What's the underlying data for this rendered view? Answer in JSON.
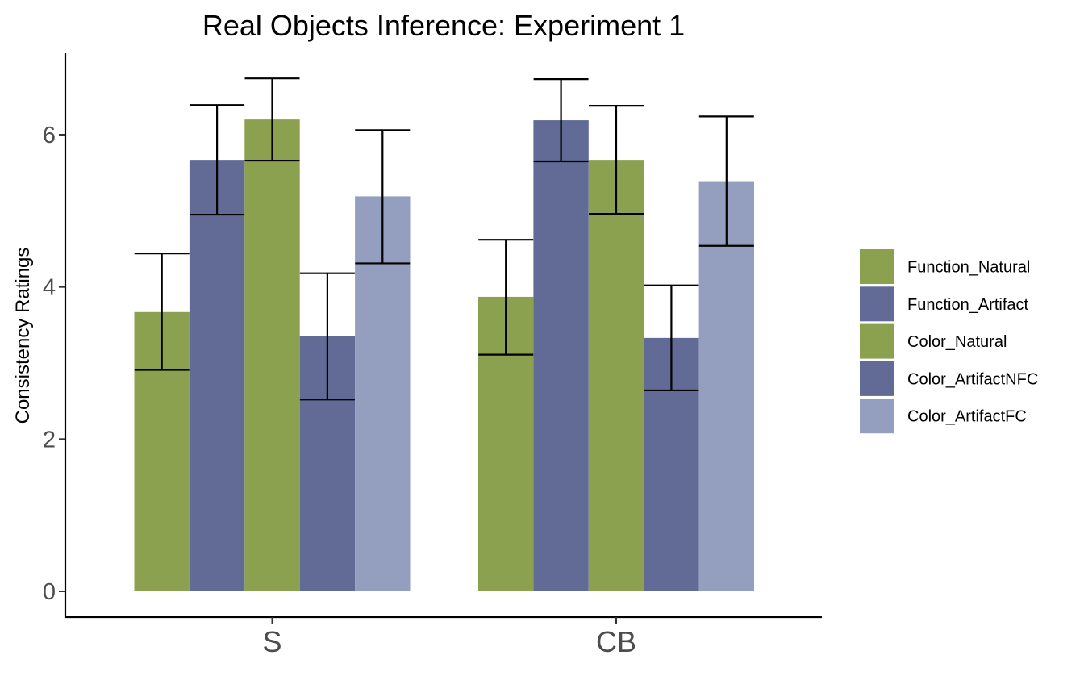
{
  "chart_data": {
    "type": "bar",
    "title": "Real Objects Inference: Experiment 1",
    "xlabel": "",
    "ylabel": "Consistency Ratings",
    "ylim": [
      -0.35,
      7.1
    ],
    "yticks": [
      0,
      2,
      4,
      6
    ],
    "categories": [
      "S",
      "CB"
    ],
    "series": [
      {
        "name": "Function_Natural",
        "color": "#8ba150",
        "values": [
          3.67,
          3.87
        ],
        "error_low": [
          2.91,
          3.11
        ],
        "error_high": [
          4.44,
          4.62
        ]
      },
      {
        "name": "Function_Artifact",
        "color": "#616b95",
        "values": [
          5.67,
          6.19
        ],
        "error_low": [
          4.95,
          5.65
        ],
        "error_high": [
          6.39,
          6.73
        ]
      },
      {
        "name": "Color_Natural",
        "color": "#8ba150",
        "values": [
          6.2,
          5.67
        ],
        "error_low": [
          5.66,
          4.96
        ],
        "error_high": [
          6.74,
          6.38
        ]
      },
      {
        "name": "Color_ArtifactNFC",
        "color": "#616b95",
        "values": [
          3.35,
          3.33
        ],
        "error_low": [
          2.52,
          2.64
        ],
        "error_high": [
          4.18,
          4.02
        ]
      },
      {
        "name": "Color_ArtifactFC",
        "color": "#949fbf",
        "values": [
          5.19,
          5.39
        ],
        "error_low": [
          4.31,
          4.54
        ],
        "error_high": [
          6.06,
          6.24
        ]
      }
    ],
    "legend_position": "right",
    "grid": false
  }
}
